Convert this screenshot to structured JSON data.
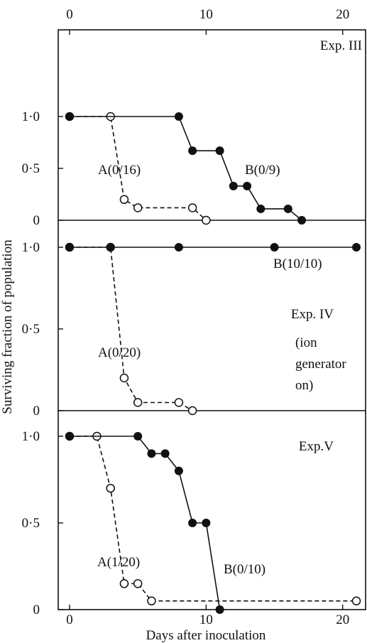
{
  "figure": {
    "x_axis_label": "Days after inoculation",
    "y_axis_label": "Surviving fraction of population",
    "x_tick_labels": [
      "0",
      "10",
      "20"
    ],
    "y_tick_labels": [
      "0",
      "0·5",
      "1·0"
    ]
  },
  "chart_data": [
    {
      "type": "line",
      "panel_label": "Exp. III",
      "xlabel": "Days after inoculation",
      "ylabel": "Surviving fraction of population",
      "xlim": [
        0,
        21
      ],
      "ylim": [
        0,
        1
      ],
      "x_ticks": [
        0,
        10,
        20
      ],
      "y_ticks": [
        0,
        0.5,
        1.0
      ],
      "series": [
        {
          "name": "A(0/16)",
          "marker": "open-circle",
          "line_style": "dashed",
          "points": [
            [
              0,
              1.0
            ],
            [
              3,
              1.0
            ],
            [
              4,
              0.2
            ],
            [
              5,
              0.12
            ],
            [
              9,
              0.12
            ],
            [
              10,
              0.0
            ]
          ]
        },
        {
          "name": "B(0/9)",
          "marker": "filled-circle",
          "line_style": "solid",
          "points": [
            [
              0,
              1.0
            ],
            [
              8,
              1.0
            ],
            [
              9,
              0.67
            ],
            [
              11,
              0.67
            ],
            [
              12,
              0.33
            ],
            [
              13,
              0.33
            ],
            [
              14,
              0.11
            ],
            [
              16,
              0.11
            ],
            [
              17,
              0.0
            ]
          ]
        }
      ]
    },
    {
      "type": "line",
      "panel_label": "Exp. IV",
      "panel_note": [
        "(ion",
        "generator",
        "on)"
      ],
      "xlabel": "Days after inoculation",
      "ylabel": "Surviving fraction of population",
      "xlim": [
        0,
        21
      ],
      "ylim": [
        0,
        1
      ],
      "x_ticks": [
        0,
        10,
        20
      ],
      "y_ticks": [
        0,
        0.5,
        1.0
      ],
      "series": [
        {
          "name": "A(0/20)",
          "marker": "open-circle",
          "line_style": "dashed",
          "points": [
            [
              0,
              1.0
            ],
            [
              3,
              1.0
            ],
            [
              4,
              0.2
            ],
            [
              5,
              0.05
            ],
            [
              8,
              0.05
            ],
            [
              9,
              0.0
            ]
          ]
        },
        {
          "name": "B(10/10)",
          "marker": "filled-circle",
          "line_style": "solid",
          "points": [
            [
              0,
              1.0
            ],
            [
              3,
              1.0
            ],
            [
              8,
              1.0
            ],
            [
              15,
              1.0
            ],
            [
              21,
              1.0
            ]
          ]
        }
      ]
    },
    {
      "type": "line",
      "panel_label": "Exp.V",
      "xlabel": "Days after inoculation",
      "ylabel": "Surviving fraction of population",
      "xlim": [
        0,
        21
      ],
      "ylim": [
        0,
        1
      ],
      "x_ticks": [
        0,
        10,
        20
      ],
      "y_ticks": [
        0,
        0.5,
        1.0
      ],
      "series": [
        {
          "name": "A(1/20)",
          "marker": "open-circle",
          "line_style": "dashed",
          "points": [
            [
              0,
              1.0
            ],
            [
              2,
              1.0
            ],
            [
              3,
              0.7
            ],
            [
              4,
              0.15
            ],
            [
              5,
              0.15
            ],
            [
              6,
              0.05
            ],
            [
              21,
              0.05
            ]
          ]
        },
        {
          "name": "B(0/10)",
          "marker": "filled-circle",
          "line_style": "solid",
          "points": [
            [
              0,
              1.0
            ],
            [
              5,
              1.0
            ],
            [
              6,
              0.9
            ],
            [
              7,
              0.9
            ],
            [
              8,
              0.8
            ],
            [
              9,
              0.5
            ],
            [
              10,
              0.5
            ],
            [
              11,
              0.0
            ]
          ]
        }
      ]
    }
  ]
}
